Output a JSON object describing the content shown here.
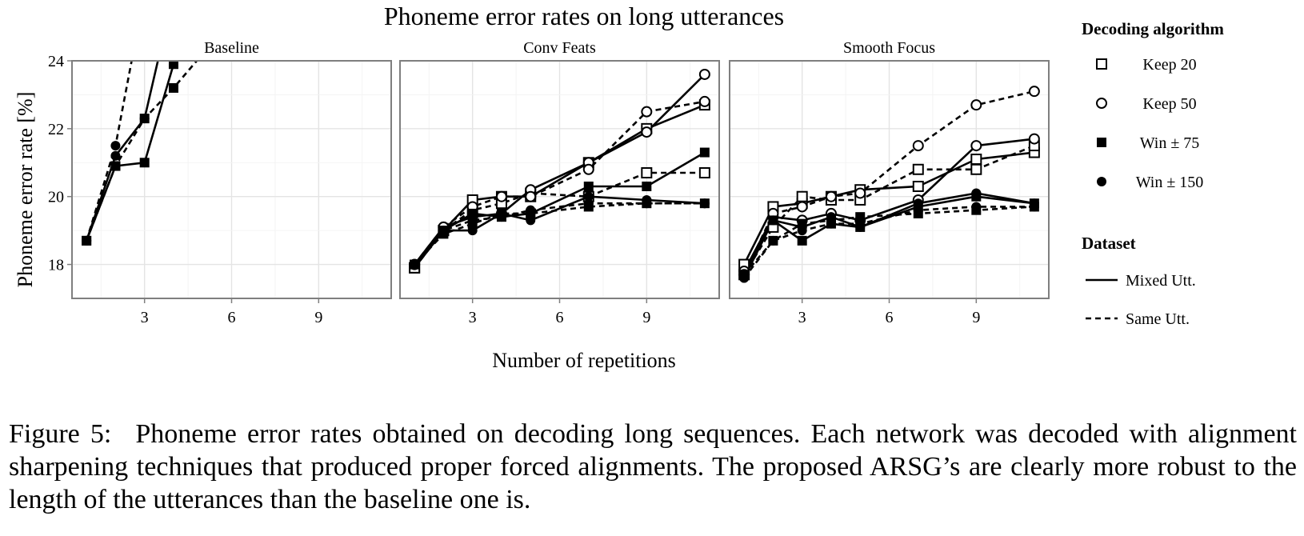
{
  "chart_data": {
    "type": "line",
    "title": "Phoneme error rates on long utterances",
    "xlabel": "Number of repetitions",
    "ylabel": "Phoneme error rate [%]",
    "xlim": [
      0.5,
      11.5
    ],
    "ylim": [
      17,
      24
    ],
    "x_ticks": [
      3,
      6,
      9
    ],
    "y_ticks": [
      18,
      20,
      22,
      24
    ],
    "grid": true,
    "legend_position": "right",
    "legend": {
      "algorithm_title": "Decoding algorithm",
      "algorithms": [
        {
          "label": "Keep 20",
          "marker": "open-square"
        },
        {
          "label": "Keep 50",
          "marker": "open-circle"
        },
        {
          "label": "Win ± 75",
          "marker": "filled-square"
        },
        {
          "label": "Win ± 150",
          "marker": "filled-circle"
        }
      ],
      "dataset_title": "Dataset",
      "datasets": [
        {
          "label": "Mixed Utt.",
          "line": "solid"
        },
        {
          "label": "Same Utt.",
          "line": "dashed"
        }
      ]
    },
    "panels": [
      {
        "title": "Baseline",
        "series": [
          {
            "algorithm": "Win ± 75",
            "dataset": "Mixed Utt.",
            "x": [
              1,
              2,
              3,
              4,
              5
            ],
            "y": [
              18.7,
              20.9,
              21.0,
              23.9,
              28.0
            ]
          },
          {
            "algorithm": "Win ± 75",
            "dataset": "Same Utt.",
            "x": [
              1,
              2,
              3,
              4,
              5
            ],
            "y": [
              18.7,
              20.9,
              22.3,
              23.2,
              24.2
            ]
          },
          {
            "algorithm": "Win ± 150",
            "dataset": "Mixed Utt.",
            "x": [
              1,
              2,
              3,
              4
            ],
            "y": [
              18.7,
              21.2,
              22.3,
              26.0
            ]
          },
          {
            "algorithm": "Win ± 150",
            "dataset": "Same Utt.",
            "x": [
              1,
              2,
              3
            ],
            "y": [
              18.7,
              21.5,
              26.0
            ]
          }
        ]
      },
      {
        "title": "Conv Feats",
        "series": [
          {
            "algorithm": "Keep 20",
            "dataset": "Mixed Utt.",
            "x": [
              1,
              2,
              3,
              4,
              5,
              7,
              9,
              11
            ],
            "y": [
              17.9,
              19.0,
              19.9,
              20.0,
              20.0,
              21.0,
              22.0,
              22.7
            ]
          },
          {
            "algorithm": "Keep 20",
            "dataset": "Same Utt.",
            "x": [
              1,
              2,
              3,
              4,
              5,
              7,
              9,
              11
            ],
            "y": [
              17.9,
              19.0,
              19.6,
              19.8,
              20.1,
              20.0,
              20.7,
              20.7
            ]
          },
          {
            "algorithm": "Keep 50",
            "dataset": "Mixed Utt.",
            "x": [
              1,
              2,
              3,
              4,
              5,
              7,
              9,
              11
            ],
            "y": [
              18.0,
              19.1,
              19.4,
              19.5,
              20.2,
              21.0,
              21.9,
              23.6
            ]
          },
          {
            "algorithm": "Keep 50",
            "dataset": "Same Utt.",
            "x": [
              1,
              2,
              3,
              4,
              5,
              7,
              9,
              11
            ],
            "y": [
              18.0,
              19.1,
              19.7,
              20.0,
              20.0,
              20.8,
              22.5,
              22.8
            ]
          },
          {
            "algorithm": "Win ± 75",
            "dataset": "Mixed Utt.",
            "x": [
              1,
              2,
              3,
              4,
              5,
              7,
              9,
              11
            ],
            "y": [
              18.0,
              19.0,
              19.5,
              19.4,
              19.5,
              20.3,
              20.3,
              21.3
            ]
          },
          {
            "algorithm": "Win ± 75",
            "dataset": "Same Utt.",
            "x": [
              1,
              2,
              3,
              4,
              5,
              7,
              9,
              11
            ],
            "y": [
              18.0,
              18.9,
              19.2,
              19.5,
              19.5,
              19.7,
              19.8,
              19.8
            ]
          },
          {
            "algorithm": "Win ± 150",
            "dataset": "Mixed Utt.",
            "x": [
              1,
              2,
              3,
              4,
              5,
              7,
              9,
              11
            ],
            "y": [
              18.0,
              19.0,
              19.0,
              19.5,
              19.3,
              20.0,
              19.9,
              19.8
            ]
          },
          {
            "algorithm": "Win ± 150",
            "dataset": "Same Utt.",
            "x": [
              1,
              2,
              3,
              4,
              5,
              7,
              9,
              11
            ],
            "y": [
              18.0,
              19.0,
              19.3,
              19.4,
              19.6,
              19.8,
              19.8,
              19.8
            ]
          }
        ]
      },
      {
        "title": "Smooth Focus",
        "series": [
          {
            "algorithm": "Keep 20",
            "dataset": "Mixed Utt.",
            "x": [
              1,
              2,
              3,
              4,
              5,
              7,
              9,
              11
            ],
            "y": [
              18.0,
              19.7,
              19.8,
              20.0,
              20.2,
              20.3,
              21.1,
              21.3
            ]
          },
          {
            "algorithm": "Keep 20",
            "dataset": "Same Utt.",
            "x": [
              1,
              2,
              3,
              4,
              5,
              7,
              9,
              11
            ],
            "y": [
              17.7,
              19.1,
              20.0,
              19.9,
              19.9,
              20.8,
              20.8,
              21.5
            ]
          },
          {
            "algorithm": "Keep 50",
            "dataset": "Mixed Utt.",
            "x": [
              1,
              2,
              3,
              4,
              5,
              7,
              9,
              11
            ],
            "y": [
              17.8,
              19.4,
              19.3,
              19.5,
              19.3,
              19.9,
              21.5,
              21.7
            ]
          },
          {
            "algorithm": "Keep 50",
            "dataset": "Same Utt.",
            "x": [
              1,
              2,
              3,
              4,
              5,
              7,
              9,
              11
            ],
            "y": [
              17.7,
              19.5,
              19.7,
              20.0,
              20.1,
              21.5,
              22.7,
              23.1
            ]
          },
          {
            "algorithm": "Win ± 75",
            "dataset": "Mixed Utt.",
            "x": [
              1,
              2,
              3,
              4,
              5,
              7,
              9,
              11
            ],
            "y": [
              17.7,
              19.3,
              18.7,
              19.2,
              19.1,
              19.7,
              20.0,
              19.8
            ]
          },
          {
            "algorithm": "Win ± 75",
            "dataset": "Same Utt.",
            "x": [
              1,
              2,
              3,
              4,
              5,
              7,
              9,
              11
            ],
            "y": [
              17.7,
              18.7,
              19.2,
              19.3,
              19.4,
              19.5,
              19.6,
              19.7
            ]
          },
          {
            "algorithm": "Win ± 150",
            "dataset": "Mixed Utt.",
            "x": [
              1,
              2,
              3,
              4,
              5,
              7,
              9,
              11
            ],
            "y": [
              17.6,
              19.3,
              19.1,
              19.4,
              19.1,
              19.8,
              20.1,
              19.8
            ]
          },
          {
            "algorithm": "Win ± 150",
            "dataset": "Same Utt.",
            "x": [
              1,
              2,
              3,
              4,
              5,
              7,
              9,
              11
            ],
            "y": [
              17.6,
              18.7,
              19.0,
              19.2,
              19.2,
              19.6,
              19.7,
              19.7
            ]
          }
        ]
      }
    ]
  },
  "caption": {
    "label": "Figure 5:",
    "text": "Phoneme error rates obtained on decoding long sequences. Each network was decoded with alignment sharpening techniques that produced proper forced alignments. The proposed ARSG’s are clearly more robust to the length of the utterances than the baseline one is."
  }
}
